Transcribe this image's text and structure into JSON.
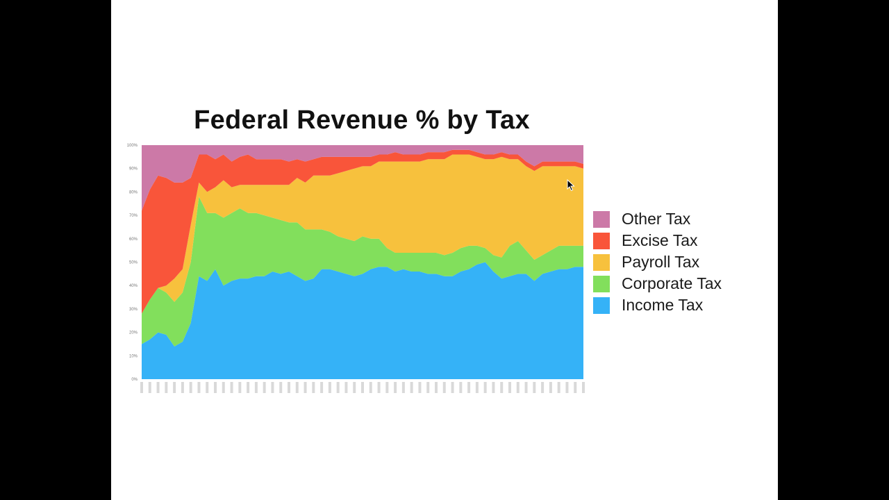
{
  "chart_data": {
    "type": "area",
    "stacked": true,
    "normalized_percent": true,
    "title": "Federal Revenue % by Tax",
    "xlabel": "",
    "ylabel": "",
    "ylim": [
      0,
      100
    ],
    "y_ticks": [
      "0%",
      "10%",
      "20%",
      "30%",
      "40%",
      "50%",
      "60%",
      "70%",
      "80%",
      "90%",
      "100%"
    ],
    "x_tick_labels_note": "year labels too small to read",
    "x_count": 55,
    "legend_position": "right",
    "series": [
      {
        "name": "Income Tax",
        "color": "#35b2f7",
        "values": [
          15,
          17,
          20,
          19,
          14,
          16,
          24,
          44,
          42,
          47,
          40,
          42,
          43,
          43,
          44,
          44,
          46,
          45,
          46,
          44,
          42,
          43,
          47,
          47,
          46,
          45,
          44,
          45,
          47,
          48,
          48,
          46,
          47,
          46,
          46,
          45,
          45,
          44,
          44,
          46,
          47,
          49,
          50,
          46,
          43,
          44,
          45,
          45,
          42,
          45,
          46,
          47,
          47,
          48,
          48
        ]
      },
      {
        "name": "Corporate Tax",
        "color": "#82df5c",
        "values": [
          13,
          17,
          19,
          18,
          19,
          21,
          26,
          34,
          29,
          24,
          29,
          29,
          30,
          28,
          27,
          26,
          23,
          23,
          21,
          23,
          22,
          21,
          17,
          16,
          15,
          15,
          15,
          16,
          13,
          12,
          8,
          8,
          7,
          8,
          8,
          9,
          9,
          9,
          10,
          10,
          10,
          8,
          6,
          7,
          9,
          13,
          14,
          10,
          9,
          8,
          9,
          10,
          10,
          9,
          9
        ]
      },
      {
        "name": "Payroll Tax",
        "color": "#f7c13d",
        "values": [
          0,
          0,
          0,
          3,
          10,
          10,
          16,
          6,
          9,
          11,
          16,
          11,
          10,
          12,
          12,
          13,
          14,
          15,
          16,
          19,
          20,
          23,
          23,
          24,
          27,
          29,
          31,
          30,
          31,
          33,
          37,
          39,
          39,
          39,
          39,
          40,
          40,
          41,
          42,
          40,
          39,
          38,
          38,
          41,
          43,
          37,
          35,
          36,
          38,
          38,
          36,
          34,
          34,
          34,
          33
        ]
      },
      {
        "name": "Excise Tax",
        "color": "#f9553a",
        "values": [
          44,
          47,
          48,
          46,
          41,
          37,
          20,
          12,
          16,
          12,
          11,
          11,
          12,
          13,
          11,
          11,
          11,
          11,
          10,
          8,
          9,
          7,
          8,
          8,
          7,
          6,
          5,
          4,
          4,
          3,
          3,
          4,
          3,
          3,
          3,
          3,
          3,
          3,
          2,
          2,
          2,
          2,
          2,
          2,
          2,
          2,
          2,
          2,
          2,
          2,
          2,
          2,
          2,
          2,
          2
        ]
      },
      {
        "name": "Other Tax",
        "color": "#cc79a7",
        "values": [
          28,
          19,
          13,
          14,
          16,
          16,
          14,
          4,
          4,
          6,
          4,
          7,
          5,
          4,
          6,
          6,
          6,
          6,
          7,
          6,
          7,
          6,
          5,
          5,
          5,
          5,
          5,
          5,
          5,
          4,
          4,
          3,
          4,
          4,
          4,
          3,
          3,
          3,
          2,
          2,
          2,
          3,
          4,
          4,
          3,
          4,
          4,
          7,
          9,
          7,
          7,
          7,
          7,
          7,
          8
        ]
      }
    ],
    "legend_order": [
      "Other Tax",
      "Excise Tax",
      "Payroll Tax",
      "Corporate Tax",
      "Income Tax"
    ]
  },
  "colors": {
    "background_outer": "#000000",
    "slide_background": "#ffffff"
  }
}
